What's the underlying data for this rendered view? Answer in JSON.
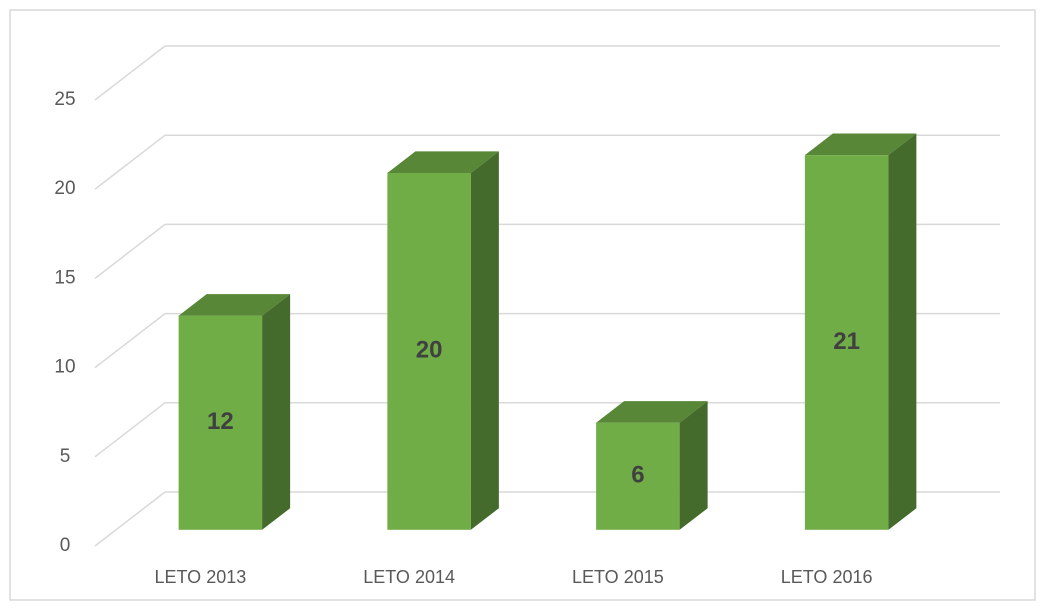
{
  "chart_data": {
    "type": "bar3d",
    "categories": [
      "LETO 2013",
      "LETO 2014",
      "LETO 2015",
      "LETO 2016"
    ],
    "values": [
      12,
      20,
      6,
      21
    ],
    "color": "#70ad47",
    "ylim": [
      0,
      25
    ],
    "yticks": [
      0,
      5,
      10,
      15,
      20,
      25
    ],
    "grid": true
  }
}
